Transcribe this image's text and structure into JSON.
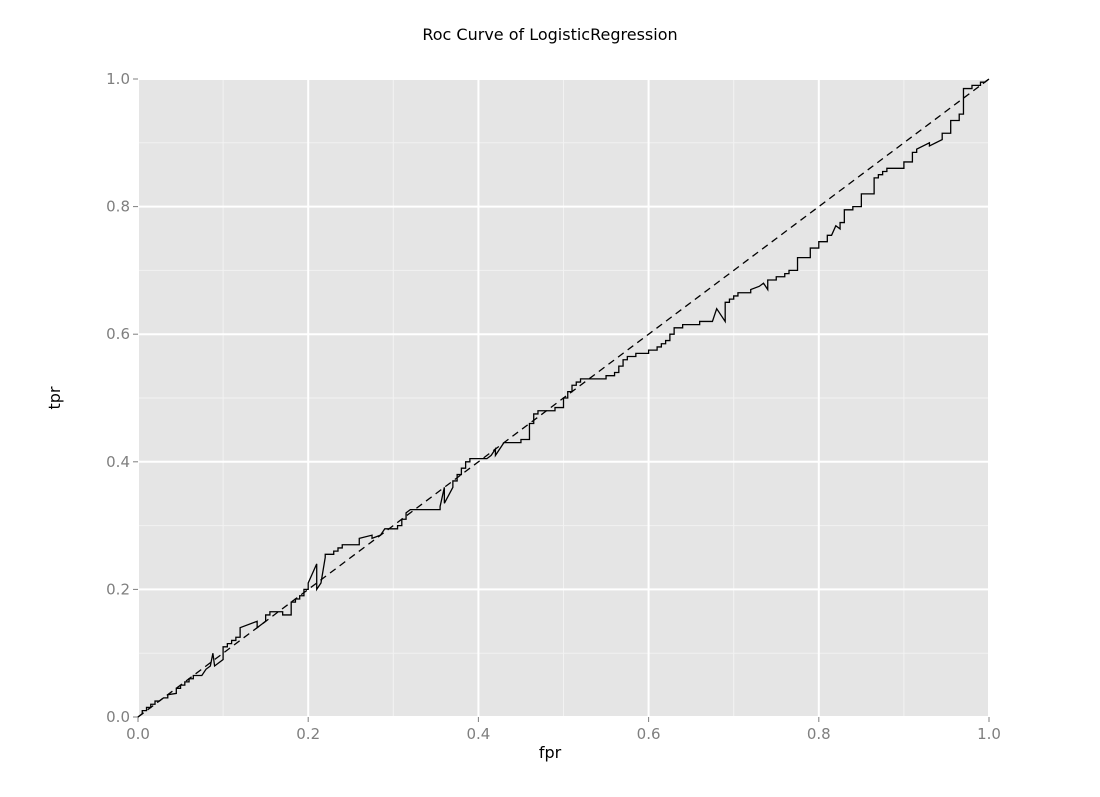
{
  "chart_data": {
    "type": "line",
    "title": "Roc Curve of LogisticRegression",
    "xlabel": "fpr",
    "ylabel": "tpr",
    "xlim": [
      0.0,
      1.0
    ],
    "ylim": [
      0.0,
      1.0
    ],
    "xticks": [
      "0.0",
      "0.2",
      "0.4",
      "0.6",
      "0.8",
      "1.0"
    ],
    "yticks": [
      "0.0",
      "0.2",
      "0.4",
      "0.6",
      "0.8",
      "1.0"
    ],
    "grid": true,
    "background": "#e5e5e5",
    "grid_color": "#ffffff",
    "line_color": "#000000",
    "series": [
      {
        "style": "solid",
        "points": [
          [
            0.0,
            0.0
          ],
          [
            0.005,
            0.005
          ],
          [
            0.005,
            0.01
          ],
          [
            0.01,
            0.01
          ],
          [
            0.01,
            0.015
          ],
          [
            0.015,
            0.015
          ],
          [
            0.015,
            0.02
          ],
          [
            0.02,
            0.02
          ],
          [
            0.02,
            0.025
          ],
          [
            0.025,
            0.025
          ],
          [
            0.03,
            0.03
          ],
          [
            0.035,
            0.03
          ],
          [
            0.035,
            0.035
          ],
          [
            0.045,
            0.037
          ],
          [
            0.045,
            0.045
          ],
          [
            0.05,
            0.045
          ],
          [
            0.05,
            0.05
          ],
          [
            0.055,
            0.05
          ],
          [
            0.055,
            0.055
          ],
          [
            0.06,
            0.055
          ],
          [
            0.06,
            0.06
          ],
          [
            0.065,
            0.06
          ],
          [
            0.065,
            0.065
          ],
          [
            0.075,
            0.065
          ],
          [
            0.08,
            0.075
          ],
          [
            0.085,
            0.08
          ],
          [
            0.088,
            0.1
          ],
          [
            0.09,
            0.08
          ],
          [
            0.1,
            0.09
          ],
          [
            0.1,
            0.1
          ],
          [
            0.1,
            0.11
          ],
          [
            0.105,
            0.11
          ],
          [
            0.105,
            0.115
          ],
          [
            0.11,
            0.115
          ],
          [
            0.11,
            0.12
          ],
          [
            0.115,
            0.12
          ],
          [
            0.115,
            0.125
          ],
          [
            0.12,
            0.125
          ],
          [
            0.12,
            0.14
          ],
          [
            0.14,
            0.15
          ],
          [
            0.14,
            0.14
          ],
          [
            0.145,
            0.145
          ],
          [
            0.15,
            0.15
          ],
          [
            0.15,
            0.16
          ],
          [
            0.155,
            0.16
          ],
          [
            0.155,
            0.165
          ],
          [
            0.17,
            0.165
          ],
          [
            0.17,
            0.16
          ],
          [
            0.18,
            0.16
          ],
          [
            0.18,
            0.18
          ],
          [
            0.185,
            0.18
          ],
          [
            0.185,
            0.185
          ],
          [
            0.19,
            0.185
          ],
          [
            0.19,
            0.19
          ],
          [
            0.195,
            0.19
          ],
          [
            0.195,
            0.2
          ],
          [
            0.2,
            0.2
          ],
          [
            0.2,
            0.21
          ],
          [
            0.21,
            0.24
          ],
          [
            0.21,
            0.2
          ],
          [
            0.215,
            0.21
          ],
          [
            0.22,
            0.25
          ],
          [
            0.22,
            0.255
          ],
          [
            0.23,
            0.255
          ],
          [
            0.23,
            0.26
          ],
          [
            0.235,
            0.26
          ],
          [
            0.235,
            0.265
          ],
          [
            0.24,
            0.265
          ],
          [
            0.24,
            0.27
          ],
          [
            0.26,
            0.27
          ],
          [
            0.26,
            0.28
          ],
          [
            0.275,
            0.285
          ],
          [
            0.275,
            0.28
          ],
          [
            0.285,
            0.285
          ],
          [
            0.29,
            0.295
          ],
          [
            0.305,
            0.295
          ],
          [
            0.305,
            0.3
          ],
          [
            0.31,
            0.3
          ],
          [
            0.31,
            0.31
          ],
          [
            0.315,
            0.31
          ],
          [
            0.315,
            0.32
          ],
          [
            0.32,
            0.325
          ],
          [
            0.355,
            0.325
          ],
          [
            0.355,
            0.33
          ],
          [
            0.36,
            0.36
          ],
          [
            0.36,
            0.335
          ],
          [
            0.37,
            0.36
          ],
          [
            0.37,
            0.37
          ],
          [
            0.375,
            0.37
          ],
          [
            0.375,
            0.38
          ],
          [
            0.38,
            0.38
          ],
          [
            0.38,
            0.39
          ],
          [
            0.385,
            0.39
          ],
          [
            0.385,
            0.4
          ],
          [
            0.39,
            0.4
          ],
          [
            0.39,
            0.405
          ],
          [
            0.4,
            0.405
          ],
          [
            0.41,
            0.405
          ],
          [
            0.415,
            0.41
          ],
          [
            0.42,
            0.42
          ],
          [
            0.42,
            0.41
          ],
          [
            0.43,
            0.43
          ],
          [
            0.43,
            0.43
          ],
          [
            0.45,
            0.43
          ],
          [
            0.45,
            0.435
          ],
          [
            0.46,
            0.435
          ],
          [
            0.46,
            0.46
          ],
          [
            0.465,
            0.46
          ],
          [
            0.465,
            0.475
          ],
          [
            0.47,
            0.475
          ],
          [
            0.47,
            0.48
          ],
          [
            0.49,
            0.48
          ],
          [
            0.49,
            0.485
          ],
          [
            0.5,
            0.485
          ],
          [
            0.5,
            0.5
          ],
          [
            0.505,
            0.5
          ],
          [
            0.505,
            0.51
          ],
          [
            0.51,
            0.51
          ],
          [
            0.51,
            0.52
          ],
          [
            0.515,
            0.52
          ],
          [
            0.515,
            0.525
          ],
          [
            0.52,
            0.525
          ],
          [
            0.52,
            0.53
          ],
          [
            0.55,
            0.53
          ],
          [
            0.55,
            0.535
          ],
          [
            0.56,
            0.535
          ],
          [
            0.56,
            0.54
          ],
          [
            0.565,
            0.54
          ],
          [
            0.565,
            0.55
          ],
          [
            0.57,
            0.55
          ],
          [
            0.57,
            0.56
          ],
          [
            0.575,
            0.56
          ],
          [
            0.575,
            0.565
          ],
          [
            0.585,
            0.565
          ],
          [
            0.585,
            0.57
          ],
          [
            0.6,
            0.57
          ],
          [
            0.6,
            0.575
          ],
          [
            0.61,
            0.575
          ],
          [
            0.61,
            0.58
          ],
          [
            0.615,
            0.58
          ],
          [
            0.615,
            0.585
          ],
          [
            0.62,
            0.585
          ],
          [
            0.62,
            0.59
          ],
          [
            0.625,
            0.59
          ],
          [
            0.625,
            0.6
          ],
          [
            0.63,
            0.6
          ],
          [
            0.63,
            0.61
          ],
          [
            0.64,
            0.61
          ],
          [
            0.64,
            0.615
          ],
          [
            0.66,
            0.615
          ],
          [
            0.66,
            0.62
          ],
          [
            0.675,
            0.62
          ],
          [
            0.68,
            0.64
          ],
          [
            0.69,
            0.62
          ],
          [
            0.69,
            0.65
          ],
          [
            0.695,
            0.65
          ],
          [
            0.695,
            0.655
          ],
          [
            0.7,
            0.655
          ],
          [
            0.7,
            0.66
          ],
          [
            0.705,
            0.66
          ],
          [
            0.705,
            0.665
          ],
          [
            0.72,
            0.665
          ],
          [
            0.72,
            0.67
          ],
          [
            0.73,
            0.675
          ],
          [
            0.735,
            0.68
          ],
          [
            0.74,
            0.67
          ],
          [
            0.74,
            0.685
          ],
          [
            0.75,
            0.685
          ],
          [
            0.75,
            0.69
          ],
          [
            0.76,
            0.69
          ],
          [
            0.76,
            0.695
          ],
          [
            0.765,
            0.695
          ],
          [
            0.765,
            0.7
          ],
          [
            0.775,
            0.7
          ],
          [
            0.775,
            0.72
          ],
          [
            0.79,
            0.72
          ],
          [
            0.79,
            0.735
          ],
          [
            0.8,
            0.735
          ],
          [
            0.8,
            0.745
          ],
          [
            0.81,
            0.745
          ],
          [
            0.81,
            0.755
          ],
          [
            0.815,
            0.755
          ],
          [
            0.82,
            0.77
          ],
          [
            0.825,
            0.765
          ],
          [
            0.825,
            0.775
          ],
          [
            0.83,
            0.775
          ],
          [
            0.83,
            0.795
          ],
          [
            0.84,
            0.795
          ],
          [
            0.84,
            0.8
          ],
          [
            0.85,
            0.8
          ],
          [
            0.85,
            0.82
          ],
          [
            0.865,
            0.82
          ],
          [
            0.865,
            0.845
          ],
          [
            0.87,
            0.845
          ],
          [
            0.87,
            0.85
          ],
          [
            0.875,
            0.85
          ],
          [
            0.875,
            0.855
          ],
          [
            0.88,
            0.855
          ],
          [
            0.88,
            0.86
          ],
          [
            0.9,
            0.86
          ],
          [
            0.9,
            0.87
          ],
          [
            0.91,
            0.87
          ],
          [
            0.91,
            0.885
          ],
          [
            0.915,
            0.885
          ],
          [
            0.915,
            0.89
          ],
          [
            0.93,
            0.9
          ],
          [
            0.93,
            0.895
          ],
          [
            0.945,
            0.905
          ],
          [
            0.945,
            0.915
          ],
          [
            0.955,
            0.915
          ],
          [
            0.955,
            0.935
          ],
          [
            0.965,
            0.935
          ],
          [
            0.965,
            0.945
          ],
          [
            0.97,
            0.945
          ],
          [
            0.97,
            0.985
          ],
          [
            0.98,
            0.985
          ],
          [
            0.98,
            0.99
          ],
          [
            0.99,
            0.99
          ],
          [
            0.99,
            0.995
          ],
          [
            0.995,
            0.995
          ],
          [
            1.0,
            1.0
          ]
        ]
      },
      {
        "style": "dashed",
        "points": [
          [
            0.0,
            0.0
          ],
          [
            1.0,
            1.0
          ]
        ]
      }
    ]
  }
}
